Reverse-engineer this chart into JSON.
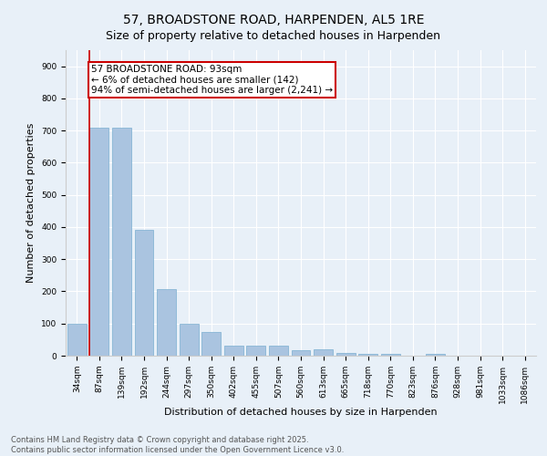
{
  "title": "57, BROADSTONE ROAD, HARPENDEN, AL5 1RE",
  "subtitle": "Size of property relative to detached houses in Harpenden",
  "xlabel": "Distribution of detached houses by size in Harpenden",
  "ylabel": "Number of detached properties",
  "categories": [
    "34sqm",
    "87sqm",
    "139sqm",
    "192sqm",
    "244sqm",
    "297sqm",
    "350sqm",
    "402sqm",
    "455sqm",
    "507sqm",
    "560sqm",
    "613sqm",
    "665sqm",
    "718sqm",
    "770sqm",
    "823sqm",
    "876sqm",
    "928sqm",
    "981sqm",
    "1033sqm",
    "1086sqm"
  ],
  "values": [
    100,
    710,
    710,
    390,
    207,
    98,
    73,
    30,
    30,
    30,
    18,
    20,
    8,
    7,
    7,
    0,
    5,
    0,
    0,
    0,
    0
  ],
  "bar_color": "#aac4e0",
  "bar_edge_color": "#7aaed0",
  "marker_line_color": "#cc0000",
  "marker_label": "57 BROADSTONE ROAD: 93sqm",
  "marker_line1": "← 6% of detached houses are smaller (142)",
  "marker_line2": "94% of semi-detached houses are larger (2,241) →",
  "annotation_box_color": "#cc0000",
  "ylim": [
    0,
    950
  ],
  "yticks": [
    0,
    100,
    200,
    300,
    400,
    500,
    600,
    700,
    800,
    900
  ],
  "background_color": "#e8f0f8",
  "grid_color": "#ffffff",
  "footer_line1": "Contains HM Land Registry data © Crown copyright and database right 2025.",
  "footer_line2": "Contains public sector information licensed under the Open Government Licence v3.0.",
  "title_fontsize": 10,
  "xlabel_fontsize": 8,
  "ylabel_fontsize": 8,
  "tick_fontsize": 6.5,
  "annotation_fontsize": 7.5,
  "footer_fontsize": 6
}
